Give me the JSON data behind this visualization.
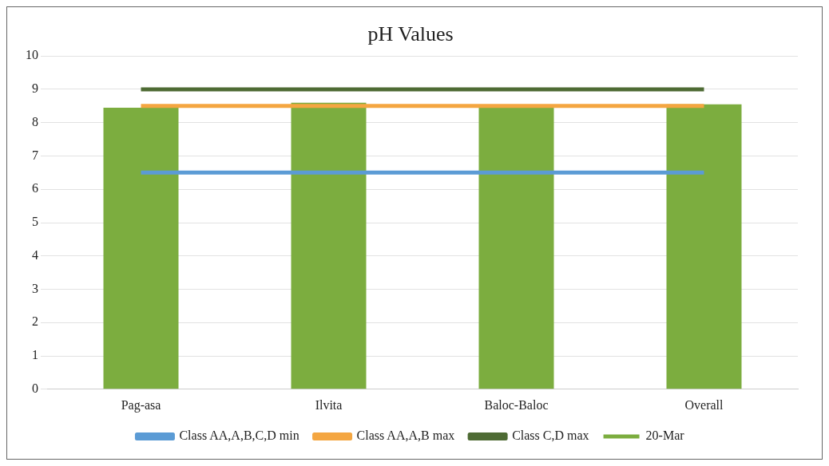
{
  "chart_data": {
    "type": "bar",
    "title": "pH Values",
    "categories": [
      "Pag-asa",
      "Ilvita",
      "Baloc-Baloc",
      "Overall"
    ],
    "series": [
      {
        "name": "20-Mar",
        "color": "#7cad3f",
        "values": [
          8.45,
          8.6,
          8.5,
          8.55
        ]
      },
      {
        "name": "Class AA,A,B,C,D min",
        "type": "line",
        "color": "#5b9bd5",
        "values": [
          6.5,
          6.5,
          6.5,
          6.5
        ]
      },
      {
        "name": "Class AA,A,B max",
        "type": "line",
        "color": "#f4a641",
        "values": [
          8.5,
          8.5,
          8.5,
          8.5
        ]
      },
      {
        "name": "Class C,D max",
        "type": "line",
        "color": "#4e6b34",
        "values": [
          9,
          9,
          9,
          9
        ]
      }
    ],
    "ylim": [
      0,
      10
    ],
    "yticks": [
      0,
      1,
      2,
      3,
      4,
      5,
      6,
      7,
      8,
      9,
      10
    ],
    "grid": "y",
    "legend": "bottom",
    "marker": "none",
    "line_style": "solid"
  }
}
